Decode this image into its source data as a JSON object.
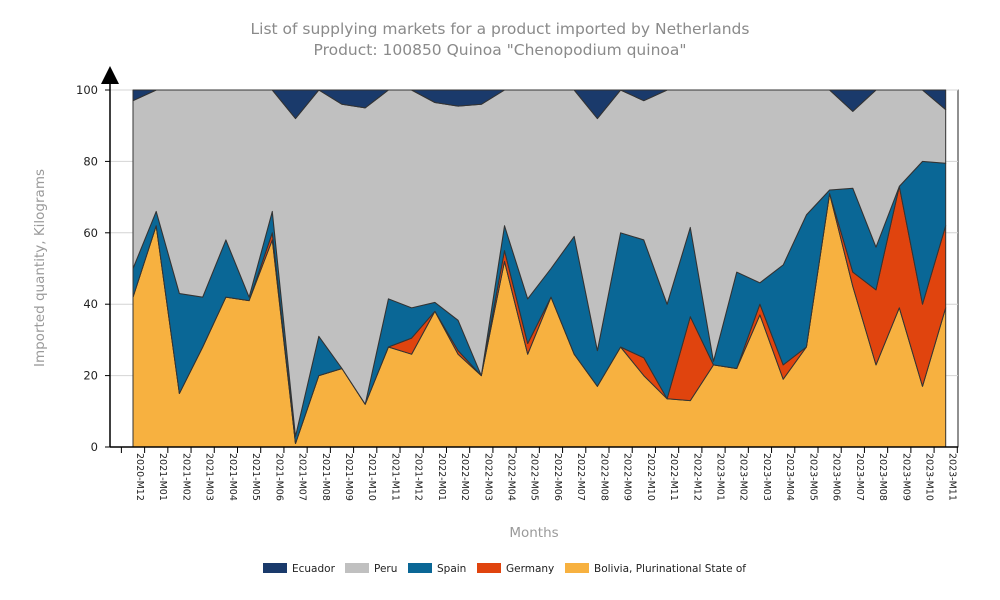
{
  "chart_data": {
    "type": "area",
    "stacked": true,
    "title": "List of supplying markets for a product imported by Netherlands",
    "subtitle": "Product: 100850 Quinoa \"Chenopodium quinoa\"",
    "xlabel": "Months",
    "ylabel": "Imported quantity, Kilograms",
    "ylim": [
      0,
      100
    ],
    "yticks": [
      0,
      20,
      40,
      60,
      80,
      100
    ],
    "grid": true,
    "legend_position": "bottom",
    "categories": [
      "2020-M12",
      "2021-M01",
      "2021-M02",
      "2021-M03",
      "2021-M04",
      "2021-M05",
      "2021-M06",
      "2021-M07",
      "2021-M08",
      "2021-M09",
      "2021-M10",
      "2021-M11",
      "2021-M12",
      "2022-M01",
      "2022-M02",
      "2022-M03",
      "2022-M04",
      "2022-M05",
      "2022-M06",
      "2022-M07",
      "2022-M08",
      "2022-M09",
      "2022-M10",
      "2022-M11",
      "2022-M12",
      "2023-M01",
      "2023-M02",
      "2023-M03",
      "2023-M04",
      "2023-M05",
      "2023-M06",
      "2023-M07",
      "2023-M08",
      "2023-M09",
      "2023-M10",
      "2023-M11"
    ],
    "series": [
      {
        "name": "Bolivia, Plurinational State of",
        "color": "#f7b140",
        "values": [
          42,
          62,
          15,
          28,
          42,
          41,
          58,
          1,
          20,
          22,
          12,
          28,
          26,
          38,
          26,
          20,
          52,
          26,
          42,
          26,
          17,
          28,
          20,
          13.5,
          13,
          23,
          22,
          37,
          19,
          28,
          71,
          45,
          23,
          39,
          17,
          39
        ]
      },
      {
        "name": "Germany",
        "color": "#e0440e",
        "values": [
          0,
          0,
          0,
          0,
          0,
          0,
          2,
          0,
          0,
          0,
          0,
          0,
          4.5,
          0,
          1,
          0,
          3,
          3,
          0,
          0,
          0,
          0,
          5,
          0,
          23.5,
          0,
          0,
          3,
          4,
          0,
          0,
          4,
          21,
          34,
          23,
          23
        ]
      },
      {
        "name": "Spain",
        "color": "#0a6796",
        "values": [
          8,
          4,
          28,
          14,
          16,
          1,
          6,
          2,
          11,
          0,
          0,
          13.5,
          8.5,
          2.5,
          8.5,
          0,
          7,
          12.5,
          8,
          33,
          10,
          32,
          33,
          26.5,
          25,
          1,
          27,
          6,
          28,
          37,
          1,
          23.5,
          12,
          0,
          40,
          17.5
        ]
      },
      {
        "name": "Peru",
        "color": "#c0c0c0",
        "values": [
          47,
          34,
          57,
          58,
          42,
          58,
          34,
          89,
          69,
          74,
          83,
          58.5,
          61,
          56,
          60,
          76,
          38,
          58.5,
          50,
          41,
          65,
          40,
          39,
          60,
          38.5,
          76,
          51,
          54,
          49,
          35,
          28,
          21.5,
          44,
          27,
          20,
          15
        ]
      },
      {
        "name": "Ecuador",
        "color": "#1a3a6b",
        "values": [
          3,
          0,
          0,
          0,
          0,
          0,
          0,
          8,
          0,
          4,
          5,
          0,
          0,
          3.5,
          4.5,
          4,
          0,
          0,
          0,
          0,
          8,
          0,
          3,
          0,
          0,
          0,
          0,
          0,
          0,
          0,
          0,
          6,
          0,
          0,
          0,
          5.5
        ]
      }
    ],
    "legend": [
      {
        "name": "Ecuador",
        "color": "#1a3a6b"
      },
      {
        "name": "Peru",
        "color": "#c0c0c0"
      },
      {
        "name": "Spain",
        "color": "#0a6796"
      },
      {
        "name": "Germany",
        "color": "#e0440e"
      },
      {
        "name": "Bolivia, Plurinational State of",
        "color": "#f7b140"
      }
    ]
  }
}
